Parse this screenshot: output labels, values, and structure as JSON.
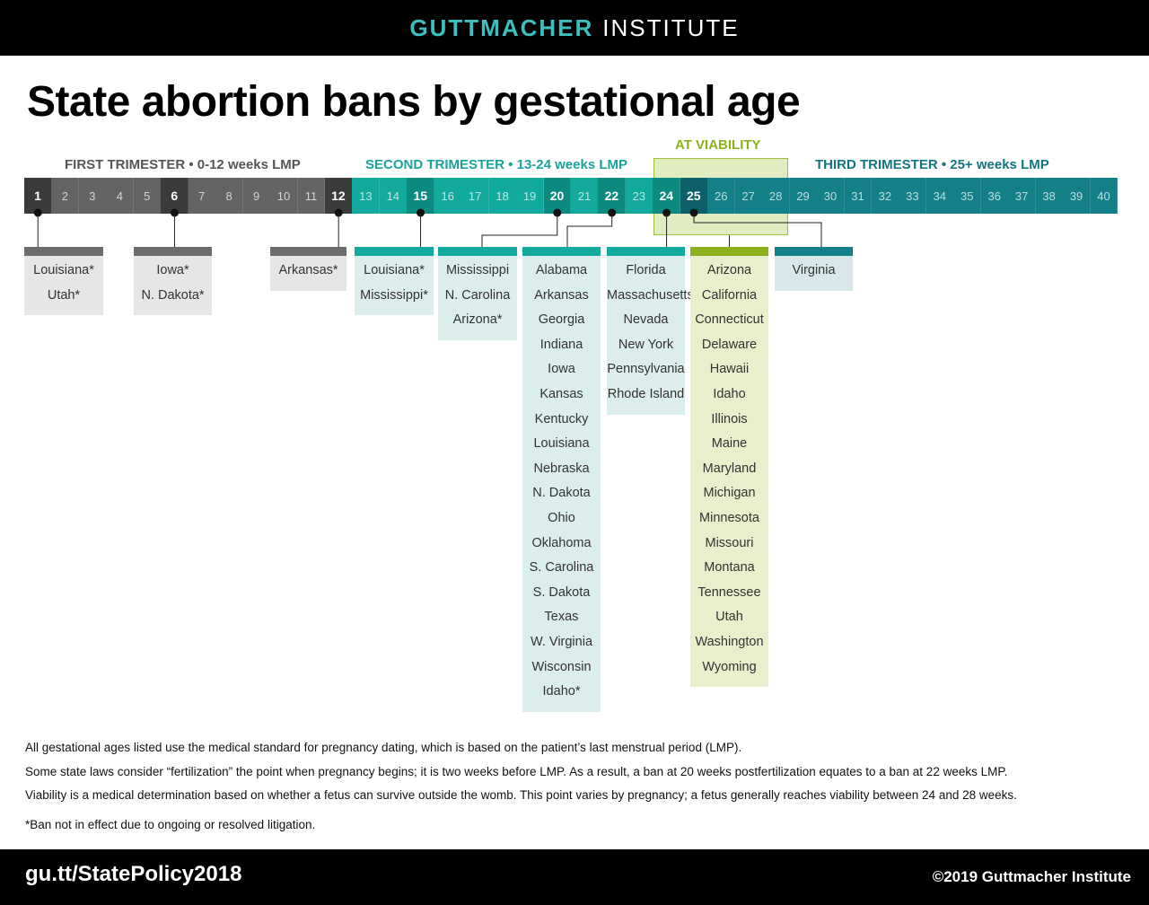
{
  "header": {
    "brand_bold": "GUTTMACHER",
    "brand_light": "INSTITUTE"
  },
  "title": "State abortion bans by gestational age",
  "trimesters": {
    "first": "FIRST TRIMESTER • 0-12 weeks LMP",
    "second": "SECOND TRIMESTER • 13-24 weeks LMP",
    "third": "THIRD TRIMESTER • 25+ weeks LMP",
    "viability": "AT VIABILITY"
  },
  "weeks": [
    "1",
    "2",
    "3",
    "4",
    "5",
    "6",
    "7",
    "8",
    "9",
    "10",
    "11",
    "12",
    "13",
    "14",
    "15",
    "16",
    "17",
    "18",
    "19",
    "20",
    "21",
    "22",
    "23",
    "24",
    "25",
    "26",
    "27",
    "28",
    "29",
    "30",
    "31",
    "32",
    "33",
    "34",
    "35",
    "36",
    "37",
    "38",
    "39",
    "40"
  ],
  "highlighted_weeks": [
    "1",
    "6",
    "12",
    "15",
    "20",
    "22",
    "24",
    "25"
  ],
  "colors": {
    "first": "#646464",
    "second": "#13aa9e",
    "third": "#137f89",
    "viability": "#8cb11d"
  },
  "groups": [
    {
      "week": "1",
      "states": [
        "Louisiana*",
        "Utah*"
      ]
    },
    {
      "week": "6",
      "states": [
        "Iowa*",
        "N. Dakota*"
      ]
    },
    {
      "week": "12",
      "states": [
        "Arkansas*"
      ]
    },
    {
      "week": "15",
      "states": [
        "Louisiana*",
        "Mississippi*"
      ]
    },
    {
      "week": "20",
      "states": [
        "Mississippi",
        "N. Carolina",
        "Arizona*"
      ]
    },
    {
      "week": "22",
      "states": [
        "Alabama",
        "Arkansas",
        "Georgia",
        "Indiana",
        "Iowa",
        "Kansas",
        "Kentucky",
        "Louisiana",
        "Nebraska",
        "N. Dakota",
        "Ohio",
        "Oklahoma",
        "S. Carolina",
        "S. Dakota",
        "Texas",
        "W. Virginia",
        "Wisconsin",
        "Idaho*"
      ]
    },
    {
      "week": "24",
      "states": [
        "Florida",
        "Massachusetts",
        "Nevada",
        "New York",
        "Pennsylvania",
        "Rhode Island"
      ]
    },
    {
      "week": "viability",
      "states": [
        "Arizona",
        "California",
        "Connecticut",
        "Delaware",
        "Hawaii",
        "Idaho",
        "Illinois",
        "Maine",
        "Maryland",
        "Michigan",
        "Minnesota",
        "Missouri",
        "Montana",
        "Tennessee",
        "Utah",
        "Washington",
        "Wyoming"
      ]
    },
    {
      "week": "25",
      "states": [
        "Virginia"
      ]
    }
  ],
  "notes": [
    "All gestational ages listed use the medical standard for pregnancy dating, which is based on the patient’s last menstrual period (LMP).",
    "Some state laws consider “fertilization” the point when pregnancy begins; it is two weeks before LMP. As a result, a ban at 20 weeks postfertilization equates to a ban at 22 weeks LMP.",
    "Viability is a medical determination based on whether a fetus can survive outside the womb. This point varies by pregnancy; a fetus generally reaches viability between 24 and 28 weeks."
  ],
  "footnote": "*Ban not in effect due to ongoing or resolved litigation.",
  "footer": {
    "url": "gu.tt/StatePolicy2018",
    "copyright": "©2019 Guttmacher Institute"
  }
}
